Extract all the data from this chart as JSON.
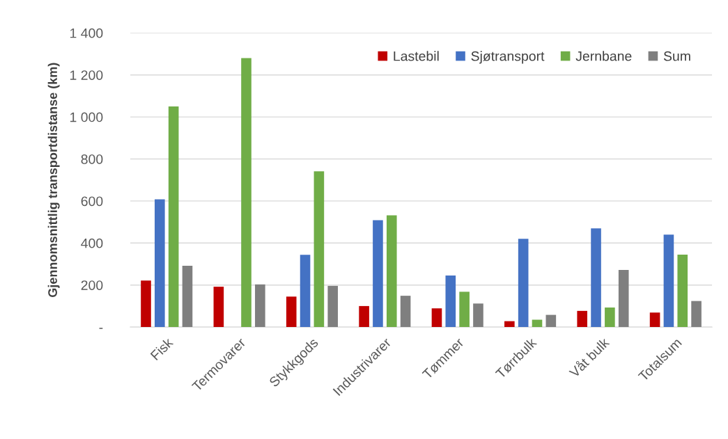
{
  "chart_data": {
    "type": "bar",
    "ylabel": "Gjennomsnittlig transportdistanse (km)",
    "categories": [
      "Fisk",
      "Termovarer",
      "Stykkgods",
      "Industrivarer",
      "Tømmer",
      "Tørrbulk",
      "Våt bulk",
      "Totalsum"
    ],
    "series": [
      {
        "name": "Lastebil",
        "color": "#c00000",
        "values": [
          221,
          192,
          145,
          100,
          89,
          28,
          77,
          69
        ]
      },
      {
        "name": "Sjøtransport",
        "color": "#4472c4",
        "values": [
          608,
          null,
          344,
          509,
          245,
          420,
          470,
          440
        ]
      },
      {
        "name": "Jernbane",
        "color": "#70ad47",
        "values": [
          1050,
          1280,
          741,
          532,
          168,
          35,
          93,
          345
        ]
      },
      {
        "name": "Sum",
        "color": "#7f7f7f",
        "values": [
          292,
          203,
          196,
          149,
          112,
          58,
          272,
          124
        ]
      }
    ],
    "ylim": [
      0,
      1400
    ],
    "yticks": [
      {
        "value": 0,
        "label": "-"
      },
      200,
      400,
      600,
      800,
      {
        "value": 1000,
        "label": "1 000"
      },
      {
        "value": 1200,
        "label": "1 200"
      },
      {
        "value": 1400,
        "label": "1 400"
      }
    ],
    "grid": "y",
    "legend": "top right"
  }
}
